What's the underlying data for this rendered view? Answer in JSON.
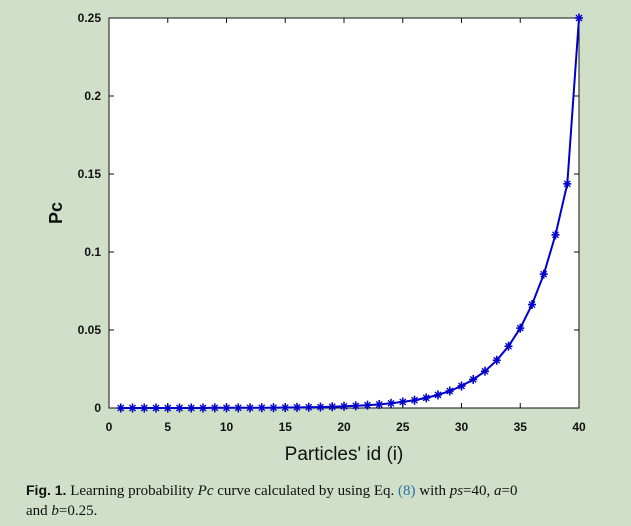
{
  "chart_data": {
    "type": "line",
    "xlabel": "Particles' id (i)",
    "ylabel": "Pc",
    "xlim": [
      0,
      40
    ],
    "ylim": [
      0,
      0.25
    ],
    "xticks": [
      0,
      5,
      10,
      15,
      20,
      25,
      30,
      35,
      40
    ],
    "yticks": [
      0,
      0.05,
      0.1,
      0.15,
      0.2,
      0.25
    ],
    "xtick_labels": [
      "0",
      "5",
      "10",
      "15",
      "20",
      "25",
      "30",
      "35",
      "40"
    ],
    "ytick_labels": [
      "0",
      "0.05",
      "0.1",
      "0.15",
      "0.2",
      "0.25"
    ],
    "grid": false,
    "line_color": "#0000cc",
    "marker": "star",
    "series": [
      {
        "x": [
          1,
          2,
          3,
          4,
          5,
          6,
          7,
          8,
          9,
          10,
          11,
          12,
          13,
          14,
          15,
          16,
          17,
          18,
          19,
          20,
          21,
          22,
          23,
          24,
          25,
          26,
          27,
          28,
          29,
          30,
          31,
          32,
          33,
          34,
          35,
          36,
          37,
          38,
          39,
          40
        ],
        "values": [
          0.0,
          0.0,
          0.0,
          0.0,
          0.0,
          0.0,
          0.0,
          0.0,
          0.0001,
          0.0001,
          0.0001,
          0.0001,
          0.0002,
          0.0002,
          0.0003,
          0.0004,
          0.0005,
          0.0006,
          0.0008,
          0.0011,
          0.0014,
          0.0018,
          0.0023,
          0.003,
          0.0039,
          0.005,
          0.0065,
          0.0084,
          0.0109,
          0.0141,
          0.0183,
          0.0236,
          0.0306,
          0.0396,
          0.0512,
          0.0663,
          0.0858,
          0.111,
          0.1437,
          0.25
        ]
      }
    ]
  },
  "caption": {
    "fig_label": "Fig. 1.",
    "text_1": " Learning probability ",
    "pc": "Pc",
    "text_2": " curve calculated by using Eq. ",
    "eq_ref": "(8)",
    "text_3": " with ",
    "ps": "ps",
    "text_4": "=40, ",
    "a": "a",
    "text_5": "=0",
    "text_6": "and ",
    "b": "b",
    "text_7": "=0.25."
  }
}
